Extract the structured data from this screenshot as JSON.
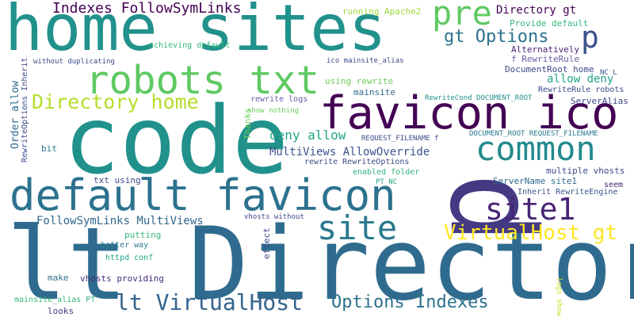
{
  "words": [
    {
      "text": "lt Directory",
      "color": "#2f6b8e"
    },
    {
      "text": "code",
      "color": "#21918c"
    },
    {
      "text": "home sites",
      "color": "#21918c"
    },
    {
      "text": "p",
      "color": "#443983"
    },
    {
      "text": "default favicon",
      "color": "#2c728e"
    },
    {
      "text": "favicon ico",
      "color": "#440154"
    },
    {
      "text": "robots txt",
      "color": "#5ec962"
    },
    {
      "text": "common",
      "color": "#238a8d"
    },
    {
      "text": "site1",
      "color": "#482576"
    },
    {
      "text": "site",
      "color": "#2a788e"
    },
    {
      "text": "pre",
      "color": "#5ec962"
    },
    {
      "text": "p",
      "color": "#3b528b"
    },
    {
      "text": "Directory home",
      "color": "#b5de2b"
    },
    {
      "text": "VirtualHost gt",
      "color": "#fde725"
    },
    {
      "text": "lt VirtualHost",
      "color": "#33638d"
    },
    {
      "text": "Options Indexes",
      "color": "#2c728e"
    },
    {
      "text": "gt Options",
      "color": "#2c728e"
    },
    {
      "text": "Indexes FollowSymLinks",
      "color": "#440154"
    },
    {
      "text": "Directory gt",
      "color": "#440154"
    },
    {
      "text": "deny allow",
      "color": "#20a386"
    },
    {
      "text": "MultiViews AllowOverride",
      "color": "#3b528b"
    },
    {
      "text": "FollowSymLinks MultiViews",
      "color": "#31688e"
    },
    {
      "text": "allow deny",
      "color": "#20a386"
    },
    {
      "text": "running Apache2",
      "color": "#a0da39"
    },
    {
      "text": "Provide default",
      "color": "#35b779"
    },
    {
      "text": "Alternatively",
      "color": "#482576"
    },
    {
      "text": "f RewriteRule",
      "color": "#6b5ba8"
    },
    {
      "text": "DocumentRoot home",
      "color": "#3e4989"
    },
    {
      "text": "NC L",
      "color": "#3b528b"
    },
    {
      "text": "RewriteRule robots",
      "color": "#3e4989"
    },
    {
      "text": "ServerAlias",
      "color": "#3e4989"
    },
    {
      "text": "RewriteCond DOCUMENT_ROOT",
      "color": "#21918c"
    },
    {
      "text": "DOCUMENT_ROOT REQUEST_FILENAME",
      "color": "#2a788e"
    },
    {
      "text": "REQUEST_FILENAME f",
      "color": "#3e4989"
    },
    {
      "text": "rewrite RewriteOptions",
      "color": "#3e4989"
    },
    {
      "text": "enabled folder",
      "color": "#2fb47c"
    },
    {
      "text": "PT NC",
      "color": "#20a386"
    },
    {
      "text": "multiple vhosts",
      "color": "#3e4989"
    },
    {
      "text": "ServerName site1",
      "color": "#2f6b8e"
    },
    {
      "text": "seem",
      "color": "#482576"
    },
    {
      "text": "Inherit RewriteEngine",
      "color": "#3b528b"
    },
    {
      "text": "vhosts without",
      "color": "#3e4989"
    },
    {
      "text": "putting",
      "color": "#35b779"
    },
    {
      "text": "better way",
      "color": "#2a788e"
    },
    {
      "text": "httpd conf",
      "color": "#20a386"
    },
    {
      "text": "vhosts providing",
      "color": "#472d7b"
    },
    {
      "text": "make",
      "color": "#2c728e"
    },
    {
      "text": "mainsite_alias PT",
      "color": "#35b779"
    },
    {
      "text": "looks",
      "color": "#443983"
    },
    {
      "text": "txt using",
      "color": "#3e4989"
    },
    {
      "text": "bit",
      "color": "#2a788e"
    },
    {
      "text": "achieving default",
      "color": "#35b779"
    },
    {
      "text": "without duplicating",
      "color": "#3e4989"
    },
    {
      "text": "ico mainsite_alias",
      "color": "#3e4989"
    },
    {
      "text": "using rewrite",
      "color": "#6ccd5a"
    },
    {
      "text": "mainsite",
      "color": "#31688e"
    },
    {
      "text": "rewrite logs",
      "color": "#6b5ba8"
    },
    {
      "text": "show nothing",
      "color": "#6ccd5a"
    },
    {
      "text": "Thanks",
      "color": "#6ccd5a"
    },
    {
      "text": "Order allow",
      "color": "#2f6b8e"
    },
    {
      "text": "RewriteOptions Inherit",
      "color": "#3e4989"
    },
    {
      "text": "effect",
      "color": "#3e4989"
    },
    {
      "text": "logs show",
      "color": "#c8e020"
    }
  ]
}
